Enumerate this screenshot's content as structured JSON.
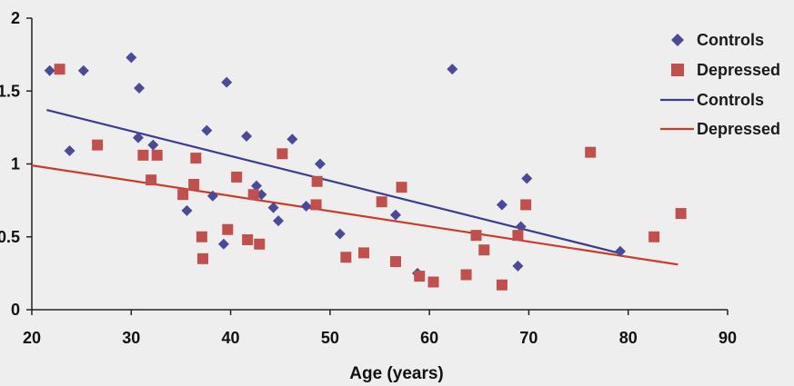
{
  "chart_data": {
    "type": "scatter",
    "title": "",
    "xlabel": "Age (years)",
    "ylabel": "",
    "xlim": [
      20,
      90
    ],
    "ylim": [
      0,
      2
    ],
    "xticks": [
      "20",
      "30",
      "40",
      "50",
      "60",
      "70",
      "80",
      "90"
    ],
    "yticks": [
      "0",
      "0.5",
      "1",
      "1.5",
      "2"
    ],
    "grid": false,
    "legend_position": "top-right",
    "series": [
      {
        "name": "Controls",
        "kind": "scatter",
        "marker": "diamond",
        "color": "#4b4a96",
        "points": [
          [
            21.8,
            1.64
          ],
          [
            23.8,
            1.09
          ],
          [
            25.2,
            1.64
          ],
          [
            30.0,
            1.73
          ],
          [
            30.8,
            1.52
          ],
          [
            30.7,
            1.18
          ],
          [
            32.2,
            1.13
          ],
          [
            37.6,
            1.23
          ],
          [
            39.6,
            1.56
          ],
          [
            41.6,
            1.19
          ],
          [
            35.6,
            0.68
          ],
          [
            38.2,
            0.78
          ],
          [
            39.3,
            0.45
          ],
          [
            42.6,
            0.85
          ],
          [
            43.1,
            0.79
          ],
          [
            44.3,
            0.7
          ],
          [
            44.8,
            0.61
          ],
          [
            46.2,
            1.17
          ],
          [
            47.6,
            0.71
          ],
          [
            49.0,
            1.0
          ],
          [
            51.0,
            0.52
          ],
          [
            56.6,
            0.65
          ],
          [
            58.8,
            0.25
          ],
          [
            62.3,
            1.65
          ],
          [
            67.3,
            0.72
          ],
          [
            69.2,
            0.57
          ],
          [
            68.9,
            0.3
          ],
          [
            69.8,
            0.9
          ],
          [
            79.2,
            0.4
          ]
        ]
      },
      {
        "name": "Depressed",
        "kind": "scatter",
        "marker": "square",
        "color": "#c0504d",
        "points": [
          [
            22.8,
            1.65
          ],
          [
            26.6,
            1.13
          ],
          [
            31.2,
            1.06
          ],
          [
            32.6,
            1.06
          ],
          [
            32.0,
            0.89
          ],
          [
            35.2,
            0.79
          ],
          [
            36.5,
            1.04
          ],
          [
            36.3,
            0.86
          ],
          [
            37.1,
            0.5
          ],
          [
            37.2,
            0.35
          ],
          [
            39.7,
            0.55
          ],
          [
            40.6,
            0.91
          ],
          [
            41.7,
            0.48
          ],
          [
            42.3,
            0.79
          ],
          [
            42.9,
            0.45
          ],
          [
            45.2,
            1.07
          ],
          [
            48.7,
            0.88
          ],
          [
            48.6,
            0.72
          ],
          [
            51.6,
            0.36
          ],
          [
            53.4,
            0.39
          ],
          [
            55.2,
            0.74
          ],
          [
            56.6,
            0.33
          ],
          [
            57.2,
            0.84
          ],
          [
            59.0,
            0.23
          ],
          [
            60.4,
            0.19
          ],
          [
            63.7,
            0.24
          ],
          [
            64.7,
            0.51
          ],
          [
            65.5,
            0.41
          ],
          [
            67.3,
            0.17
          ],
          [
            68.9,
            0.51
          ],
          [
            69.7,
            0.72
          ],
          [
            76.2,
            1.08
          ],
          [
            82.6,
            0.5
          ],
          [
            85.3,
            0.66
          ]
        ]
      },
      {
        "name": "Controls",
        "kind": "line",
        "color": "#3a3d8f",
        "points": [
          [
            21.5,
            1.37
          ],
          [
            79.0,
            0.39
          ]
        ]
      },
      {
        "name": "Depressed",
        "kind": "line",
        "color": "#cc3a2a",
        "points": [
          [
            20.0,
            0.99
          ],
          [
            85.0,
            0.31
          ]
        ]
      }
    ]
  },
  "legend": {
    "items": [
      {
        "label": "Controls",
        "symbol": "diamond",
        "color": "#4b4a96"
      },
      {
        "label": "Depressed",
        "symbol": "square",
        "color": "#c0504d"
      },
      {
        "label": "Controls",
        "symbol": "line",
        "color": "#3a3d8f"
      },
      {
        "label": "Depressed",
        "symbol": "line",
        "color": "#cc3a2a"
      }
    ]
  }
}
